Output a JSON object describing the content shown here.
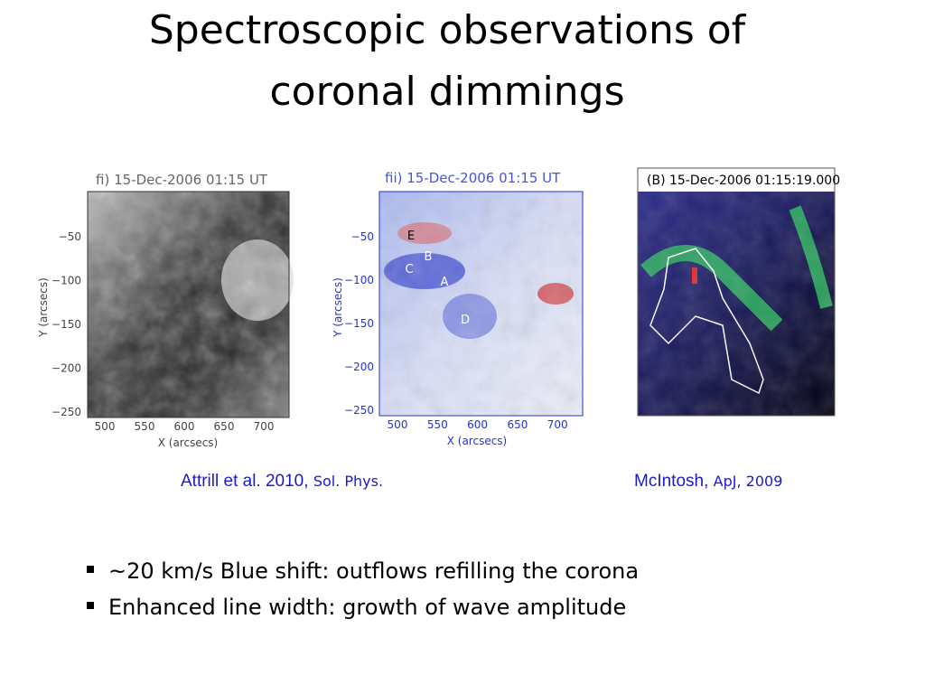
{
  "title": [
    "Spectroscopic observations of",
    "coronal dimmings"
  ],
  "figures": [
    {
      "label": "fi) 15-Dec-2006 01:15 UT",
      "y_ticks": [
        "−50",
        "−100",
        "−150",
        "−200",
        "−250"
      ],
      "x_ticks": [
        "500",
        "550",
        "600",
        "650",
        "700"
      ],
      "x_label": "X (arcsecs)",
      "y_label": "Y (arcsecs)"
    },
    {
      "label": "fii) 15-Dec-2006 01:15 UT",
      "y_ticks": [
        "−50",
        "−100",
        "−150",
        "−200",
        "−250"
      ],
      "x_ticks": [
        "500",
        "550",
        "600",
        "650",
        "700"
      ],
      "x_label": "X (arcsecs)",
      "y_label": "Y (arcsecs)",
      "annotations": [
        "E",
        "B",
        "C",
        "A",
        "D"
      ]
    },
    {
      "label": "(B) 15-Dec-2006 01:15:19.000"
    }
  ],
  "captions": [
    {
      "authors": "Attrill et al. 2010,",
      "journal": "Sol. Phys."
    },
    {
      "authors": "McIntosh,",
      "journal": "ApJ, 2009"
    }
  ],
  "bullets": [
    "~20 km/s Blue shift: outflows refilling the corona",
    "Enhanced line width: growth of wave amplitude"
  ]
}
